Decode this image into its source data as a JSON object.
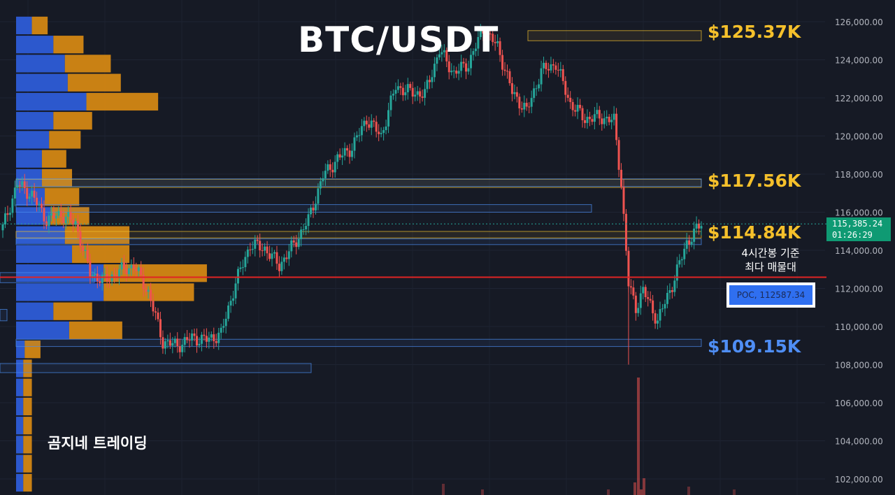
{
  "title": "BTC/USDT",
  "watermark": "곰지네 트레이딩",
  "annotation": {
    "line1": "4시간봉 기준",
    "line2": "최다 매물대"
  },
  "poc_label": "POC, 112587.34",
  "price_tag": {
    "price": "115,385.24",
    "countdown": "01:26:29"
  },
  "colors": {
    "background": "#161a25",
    "up": "#26a69a",
    "down": "#ef5350",
    "vp_buy": "#2f5ddb",
    "vp_sell": "#d98a12",
    "level_gold": "#f2c12e",
    "level_blue": "#4b8df0",
    "poc_line": "#e02424",
    "axis_text": "#b2b5be"
  },
  "chart_data": {
    "type": "candlestick",
    "title": "BTC/USDT",
    "ylim": [
      101000,
      126800
    ],
    "y_ticks": [
      "126,000.00",
      "124,000.00",
      "122,000.00",
      "120,000.00",
      "118,000.00",
      "116,000.00",
      "114,000.00",
      "112,000.00",
      "110,000.00",
      "108,000.00",
      "106,000.00",
      "104,000.00",
      "102,000.00"
    ],
    "last_price": 115385.24,
    "poc": 112587.34,
    "levels": [
      {
        "label": "$125.37K",
        "value": 125370,
        "color": "gold"
      },
      {
        "label": "$117.56K",
        "value": 117560,
        "color": "gold"
      },
      {
        "label": "$114.84K",
        "value": 114840,
        "color": "gold"
      },
      {
        "label": "$109.15K",
        "value": 109150,
        "color": "blue"
      }
    ],
    "waypoints": [
      [
        0,
        115200
      ],
      [
        6,
        117500
      ],
      [
        12,
        116900
      ],
      [
        18,
        115600
      ],
      [
        24,
        115900
      ],
      [
        30,
        115400
      ],
      [
        36,
        112800
      ],
      [
        42,
        112400
      ],
      [
        48,
        112900
      ],
      [
        54,
        113200
      ],
      [
        60,
        111800
      ],
      [
        66,
        109200
      ],
      [
        72,
        109000
      ],
      [
        78,
        109400
      ],
      [
        84,
        109300
      ],
      [
        90,
        109600
      ],
      [
        96,
        112300
      ],
      [
        102,
        114300
      ],
      [
        108,
        114100
      ],
      [
        114,
        113200
      ],
      [
        120,
        114300
      ],
      [
        126,
        115600
      ],
      [
        132,
        117900
      ],
      [
        138,
        118800
      ],
      [
        144,
        119400
      ],
      [
        150,
        120900
      ],
      [
        156,
        120000
      ],
      [
        162,
        122600
      ],
      [
        168,
        122300
      ],
      [
        174,
        122200
      ],
      [
        180,
        124500
      ],
      [
        186,
        123300
      ],
      [
        192,
        123800
      ],
      [
        198,
        125600
      ],
      [
        204,
        124700
      ],
      [
        210,
        122300
      ],
      [
        216,
        121300
      ],
      [
        222,
        123400
      ],
      [
        228,
        123800
      ],
      [
        234,
        121700
      ],
      [
        240,
        120900
      ],
      [
        246,
        121000
      ],
      [
        252,
        120800
      ],
      [
        255,
        117500
      ],
      [
        258,
        112200
      ],
      [
        261,
        111000
      ],
      [
        264,
        111900
      ],
      [
        270,
        110300
      ],
      [
        276,
        112200
      ],
      [
        282,
        114400
      ],
      [
        288,
        115400
      ]
    ],
    "volume_profile": [
      {
        "price": 125800,
        "buy": 0.11,
        "sell": 0.11
      },
      {
        "price": 124800,
        "buy": 0.26,
        "sell": 0.21
      },
      {
        "price": 123800,
        "buy": 0.34,
        "sell": 0.32
      },
      {
        "price": 122800,
        "buy": 0.36,
        "sell": 0.37
      },
      {
        "price": 121800,
        "buy": 0.49,
        "sell": 0.5
      },
      {
        "price": 120800,
        "buy": 0.26,
        "sell": 0.27
      },
      {
        "price": 119800,
        "buy": 0.23,
        "sell": 0.22
      },
      {
        "price": 118800,
        "buy": 0.18,
        "sell": 0.17
      },
      {
        "price": 117800,
        "buy": 0.18,
        "sell": 0.21
      },
      {
        "price": 116800,
        "buy": 0.2,
        "sell": 0.24
      },
      {
        "price": 115800,
        "buy": 0.24,
        "sell": 0.27
      },
      {
        "price": 114800,
        "buy": 0.34,
        "sell": 0.45
      },
      {
        "price": 113800,
        "buy": 0.39,
        "sell": 0.4
      },
      {
        "price": 112800,
        "buy": 0.61,
        "sell": 0.72
      },
      {
        "price": 111800,
        "buy": 0.61,
        "sell": 0.63
      },
      {
        "price": 110800,
        "buy": 0.26,
        "sell": 0.27
      },
      {
        "price": 109800,
        "buy": 0.37,
        "sell": 0.37
      },
      {
        "price": 108800,
        "buy": 0.06,
        "sell": 0.11
      },
      {
        "price": 107800,
        "buy": 0.05,
        "sell": 0.06
      },
      {
        "price": 106800,
        "buy": 0.05,
        "sell": 0.06
      },
      {
        "price": 105800,
        "buy": 0.05,
        "sell": 0.06
      },
      {
        "price": 104800,
        "buy": 0.05,
        "sell": 0.06
      },
      {
        "price": 103800,
        "buy": 0.05,
        "sell": 0.06
      },
      {
        "price": 102800,
        "buy": 0.05,
        "sell": 0.06
      },
      {
        "price": 101800,
        "buy": 0.05,
        "sell": 0.06
      }
    ]
  }
}
